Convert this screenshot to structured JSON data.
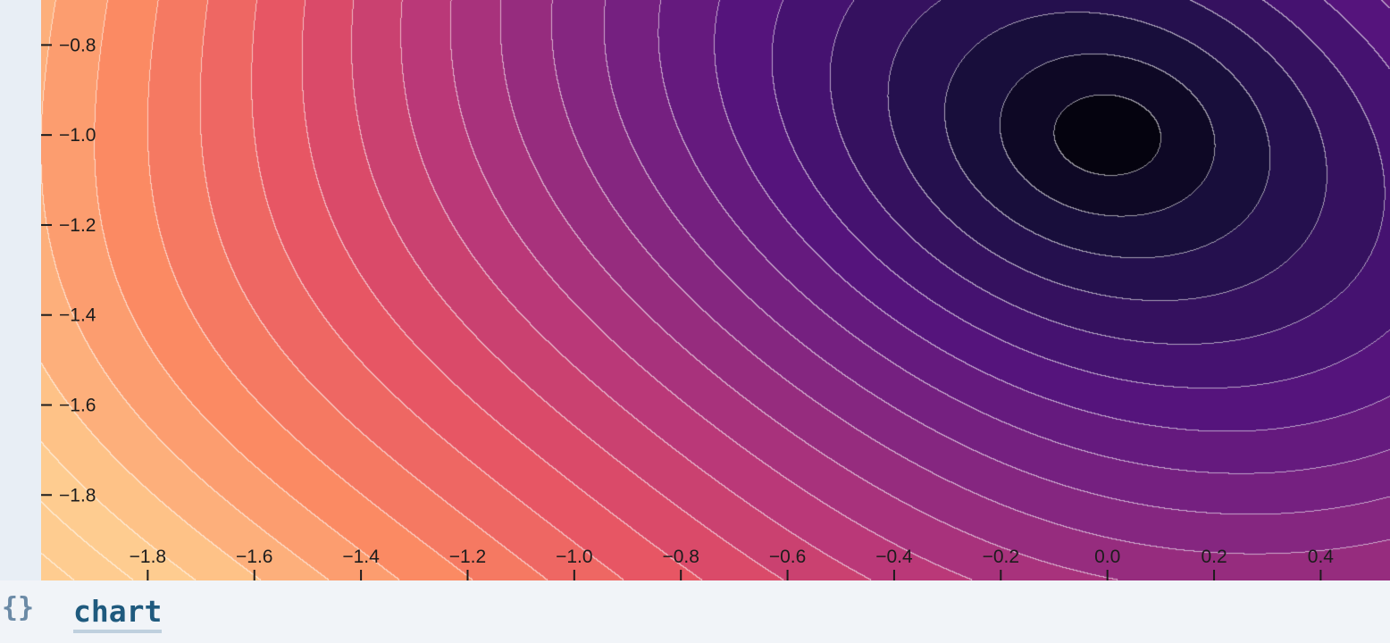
{
  "tab": {
    "label": "chart"
  },
  "icons": {
    "code": "braces-icon",
    "code_glyph": "{}"
  },
  "chart_data": {
    "type": "contour",
    "title": "",
    "xlabel": "",
    "ylabel": "",
    "colormap": "magma",
    "contour_line_color": "#ffffff",
    "xlim": [
      -2.0,
      0.53
    ],
    "ylim": [
      -1.99,
      -0.7
    ],
    "x_ticks": [
      -1.8,
      -1.6,
      -1.4,
      -1.2,
      -1.0,
      -0.8,
      -0.6,
      -0.4,
      -0.2,
      0.0,
      0.2,
      0.4
    ],
    "x_tick_labels": [
      "−1.8",
      "−1.6",
      "−1.4",
      "−1.2",
      "−1.0",
      "−0.8",
      "−0.6",
      "−0.4",
      "−0.2",
      "0.0",
      "0.2",
      "0.4"
    ],
    "y_ticks": [
      -0.8,
      -1.0,
      -1.2,
      -1.4,
      -1.6,
      -1.8
    ],
    "y_tick_labels": [
      "−0.8",
      "−1.0",
      "−1.2",
      "−1.4",
      "−1.6",
      "−1.8"
    ],
    "minimum": {
      "x": 0.0,
      "y": -1.0
    },
    "contour_levels": 22
  }
}
